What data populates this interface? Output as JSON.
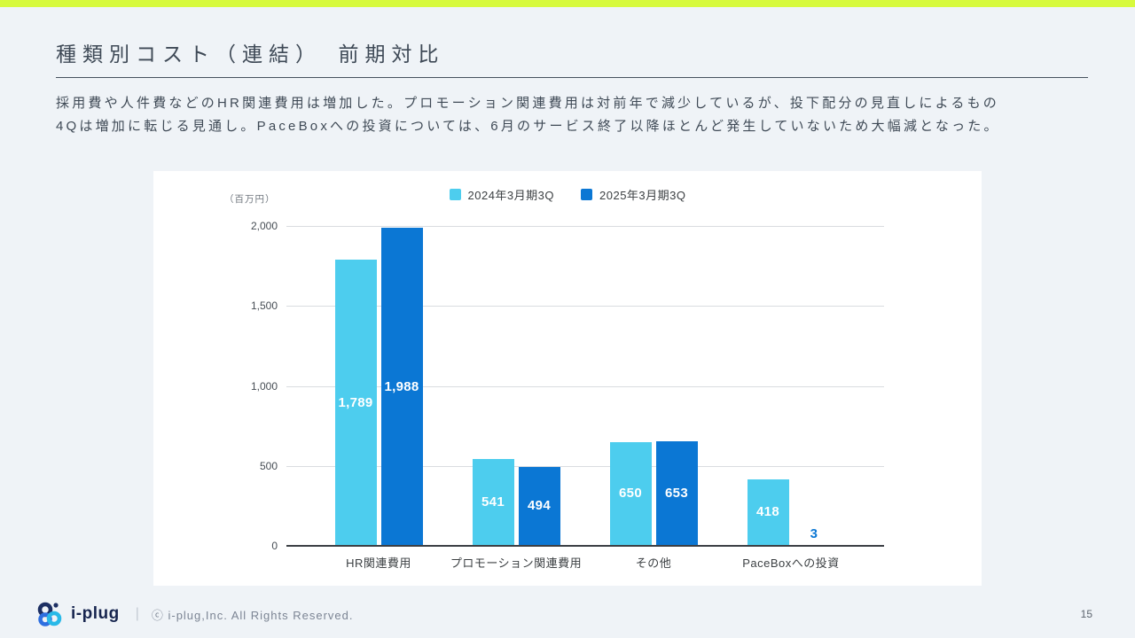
{
  "page": {
    "title": "種類別コスト（連結）　前期対比",
    "description_lines": [
      "採用費や人件費などのHR関連費用は増加した。プロモーション関連費用は対前年で減少しているが、投下配分の見直しによるもの",
      "4Qは増加に転じる見通し。PaceBoxへの投資については、6月のサービス終了以降ほとんど発生していないため大幅減となった。"
    ],
    "page_number": "15"
  },
  "footer": {
    "brand": "i-plug",
    "separator": "|",
    "copyright": "ⓒ i-plug,Inc. All Rights Reserved.",
    "logo_icon": "i-plug-circles-logo"
  },
  "colors": {
    "top_strip": "#d7fa3d",
    "background": "#eff3f7",
    "panel": "#ffffff",
    "series_2024": "#4dcdee",
    "series_2025": "#0b77d4",
    "gridline": "#dadce0",
    "axis": "#3b3f44",
    "title_text": "#3e4956",
    "body_text": "#3f4a56"
  },
  "chart_data": {
    "type": "bar",
    "title": "",
    "unit_label": "（百万円）",
    "xlabel": "",
    "ylabel": "百万円",
    "ylim": [
      0,
      2000
    ],
    "grid": true,
    "legend_position": "top",
    "categories": [
      "HR関連費用",
      "プロモーション関連費用",
      "その他",
      "PaceBoxへの投資"
    ],
    "series": [
      {
        "name": "2024年3月期3Q",
        "color": "#4dcdee",
        "values": [
          1789,
          541,
          650,
          418
        ],
        "labels": [
          "1,789",
          "541",
          "650",
          "418"
        ]
      },
      {
        "name": "2025年3月期3Q",
        "color": "#0b77d4",
        "values": [
          1988,
          494,
          653,
          3
        ],
        "labels": [
          "1,988",
          "494",
          "653",
          "3"
        ]
      }
    ],
    "y_ticks": [
      {
        "value": 0,
        "label": "0"
      },
      {
        "value": 500,
        "label": "500"
      },
      {
        "value": 1000,
        "label": "1,000"
      },
      {
        "value": 1500,
        "label": "1,500"
      },
      {
        "value": 2000,
        "label": "2,000"
      }
    ]
  }
}
